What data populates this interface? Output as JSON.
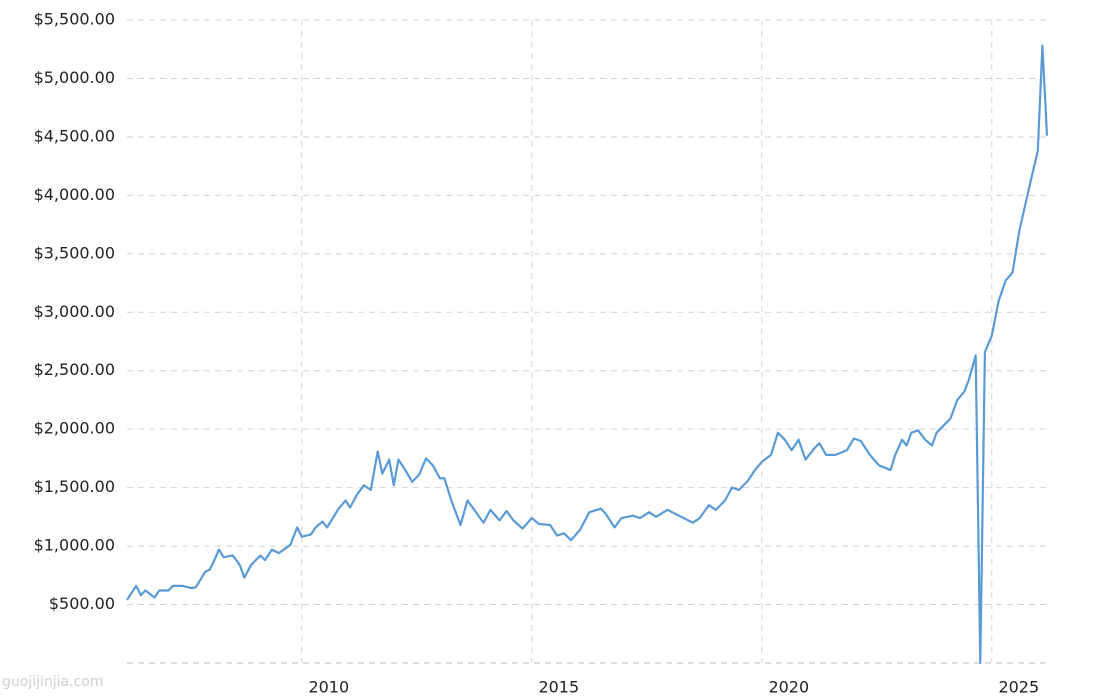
{
  "chart_data": {
    "type": "line",
    "watermark": "guojijinjia.com",
    "x": [
      2006.2,
      2006.4,
      2006.5,
      2006.6,
      2006.8,
      2006.9,
      2007.1,
      2007.2,
      2007.4,
      2007.6,
      2007.7,
      2007.9,
      2008.0,
      2008.1,
      2008.2,
      2008.3,
      2008.5,
      2008.65,
      2008.75,
      2008.9,
      2009.1,
      2009.2,
      2009.35,
      2009.5,
      2009.75,
      2009.9,
      2010.0,
      2010.2,
      2010.3,
      2010.45,
      2010.55,
      2010.8,
      2010.95,
      2011.05,
      2011.2,
      2011.35,
      2011.5,
      2011.65,
      2011.75,
      2011.9,
      2012.0,
      2012.1,
      2012.25,
      2012.4,
      2012.55,
      2012.7,
      2012.85,
      2013.0,
      2013.1,
      2013.25,
      2013.45,
      2013.6,
      2013.75,
      2013.95,
      2014.1,
      2014.3,
      2014.45,
      2014.6,
      2014.8,
      2015.0,
      2015.15,
      2015.4,
      2015.55,
      2015.7,
      2015.85,
      2016.05,
      2016.25,
      2016.5,
      2016.6,
      2016.8,
      2016.95,
      2017.2,
      2017.35,
      2017.55,
      2017.7,
      2017.95,
      2018.2,
      2018.5,
      2018.65,
      2018.85,
      2019.0,
      2019.2,
      2019.35,
      2019.5,
      2019.7,
      2019.85,
      2020.0,
      2020.2,
      2020.35,
      2020.5,
      2020.65,
      2020.8,
      2020.95,
      2021.15,
      2021.25,
      2021.4,
      2021.6,
      2021.85,
      2022.0,
      2022.15,
      2022.35,
      2022.55,
      2022.8,
      2022.9,
      2023.05,
      2023.15,
      2023.25,
      2023.4,
      2023.55,
      2023.7,
      2023.8,
      2023.95,
      2024.1,
      2024.25,
      2024.4,
      2024.5,
      2024.65,
      2024.75,
      2024.85,
      2025.0,
      2025.15,
      2025.3,
      2025.45,
      2025.6,
      2025.85,
      2026.0,
      2026.1,
      2026.2
    ],
    "series": [
      {
        "color": "#5b9bd5",
        "values": [
          540,
          660,
          580,
          620,
          560,
          620,
          620,
          660,
          660,
          640,
          650,
          780,
          800,
          880,
          970,
          905,
          920,
          840,
          730,
          840,
          920,
          880,
          970,
          940,
          1010,
          1160,
          1080,
          1100,
          1160,
          1210,
          1160,
          1320,
          1390,
          1330,
          1440,
          1520,
          1480,
          1810,
          1620,
          1740,
          1520,
          1740,
          1650,
          1550,
          1610,
          1750,
          1690,
          1580,
          1580,
          1390,
          1180,
          1390,
          1310,
          1200,
          1310,
          1220,
          1300,
          1220,
          1150,
          1240,
          1190,
          1180,
          1090,
          1110,
          1050,
          1140,
          1290,
          1320,
          1280,
          1160,
          1240,
          1260,
          1240,
          1290,
          1250,
          1310,
          1260,
          1200,
          1240,
          1350,
          1310,
          1390,
          1500,
          1480,
          1560,
          1650,
          1720,
          1780,
          1970,
          1910,
          1820,
          1910,
          1740,
          1840,
          1880,
          1780,
          1780,
          1820,
          1920,
          1900,
          1780,
          1690,
          1650,
          1780,
          1910,
          1860,
          1970,
          1990,
          1910,
          1860,
          1970,
          2030,
          2090,
          2250,
          2320,
          2420,
          2630,
          0,
          2660,
          2800,
          3100,
          3270,
          3340,
          3700,
          4130,
          4380,
          5280,
          4510
        ]
      }
    ],
    "xlim": [
      2006.2,
      2026.2
    ],
    "xticks": [
      2010,
      2015,
      2020,
      2025
    ],
    "ylim": [
      0,
      5500
    ],
    "yticks": [
      {
        "value": 500,
        "label": "$500.00"
      },
      {
        "value": 1000,
        "label": "$1,000.00"
      },
      {
        "value": 1500,
        "label": "$1,500.00"
      },
      {
        "value": 2000,
        "label": "$2,000.00"
      },
      {
        "value": 2500,
        "label": "$2,500.00"
      },
      {
        "value": 3000,
        "label": "$3,000.00"
      },
      {
        "value": 3500,
        "label": "$3,500.00"
      },
      {
        "value": 4000,
        "label": "$4,000.00"
      },
      {
        "value": 4500,
        "label": "$4,500.00"
      },
      {
        "value": 5000,
        "label": "$5,000.00"
      },
      {
        "value": 5500,
        "label": "$5,500.00"
      }
    ],
    "grid": true
  }
}
